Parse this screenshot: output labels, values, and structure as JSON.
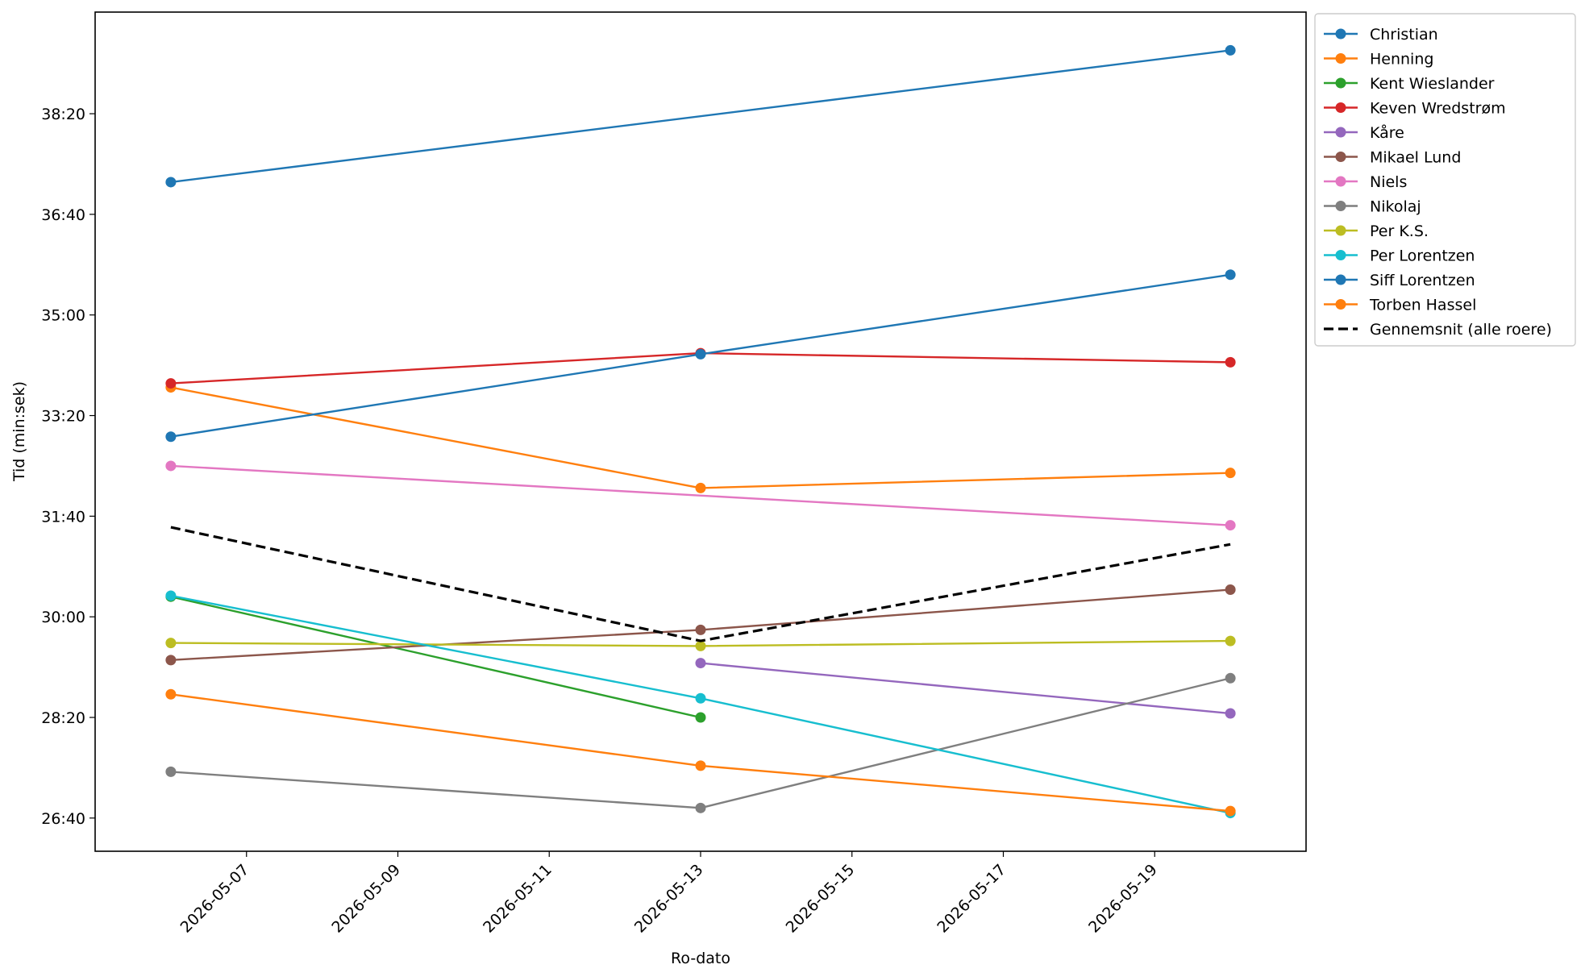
{
  "chart_data": {
    "type": "line",
    "title": "",
    "xlabel": "Ro-dato",
    "ylabel": "Tid (min:sek)",
    "x_type": "date",
    "xlim": [
      "2026-05-05",
      "2026-05-21"
    ],
    "x_ticks": [
      "2026-05-07",
      "2026-05-09",
      "2026-05-11",
      "2026-05-13",
      "2026-05-15",
      "2026-05-17",
      "2026-05-19"
    ],
    "y_unit": "min:sek",
    "ylim": [
      "26:07",
      "40:01"
    ],
    "y_ticks": [
      "26:40",
      "28:20",
      "30:00",
      "31:40",
      "33:20",
      "35:00",
      "36:40",
      "38:20"
    ],
    "grid": false,
    "legend_position": "outside-right",
    "series": [
      {
        "name": "Christian",
        "color": "#1f77b4",
        "style": "solid-marker",
        "points": [
          {
            "x": "2026-05-06",
            "y": "37:12"
          },
          {
            "x": "2026-05-20",
            "y": "39:23"
          }
        ]
      },
      {
        "name": "Henning",
        "color": "#ff7f0e",
        "style": "solid-marker",
        "points": [
          {
            "x": "2026-05-06",
            "y": "33:48"
          },
          {
            "x": "2026-05-13",
            "y": "32:08"
          },
          {
            "x": "2026-05-20",
            "y": "32:23"
          }
        ]
      },
      {
        "name": "Kent Wieslander",
        "color": "#2ca02c",
        "style": "solid-marker",
        "points": [
          {
            "x": "2026-05-06",
            "y": "30:20"
          },
          {
            "x": "2026-05-13",
            "y": "28:20"
          }
        ]
      },
      {
        "name": "Keven Wredstrøm",
        "color": "#d62728",
        "style": "solid-marker",
        "points": [
          {
            "x": "2026-05-06",
            "y": "33:52"
          },
          {
            "x": "2026-05-13",
            "y": "34:22"
          },
          {
            "x": "2026-05-20",
            "y": "34:13"
          }
        ]
      },
      {
        "name": "Kåre",
        "color": "#9467bd",
        "style": "solid-marker",
        "points": [
          {
            "x": "2026-05-13",
            "y": "29:14"
          },
          {
            "x": "2026-05-20",
            "y": "28:24"
          }
        ]
      },
      {
        "name": "Mikael Lund",
        "color": "#8c564b",
        "style": "solid-marker",
        "points": [
          {
            "x": "2026-05-06",
            "y": "29:17"
          },
          {
            "x": "2026-05-13",
            "y": "29:47"
          },
          {
            "x": "2026-05-20",
            "y": "30:27"
          }
        ]
      },
      {
        "name": "Niels",
        "color": "#e377c2",
        "style": "solid-marker",
        "points": [
          {
            "x": "2026-05-06",
            "y": "32:30"
          },
          {
            "x": "2026-05-20",
            "y": "31:31"
          }
        ]
      },
      {
        "name": "Nikolaj",
        "color": "#7f7f7f",
        "style": "solid-marker",
        "points": [
          {
            "x": "2026-05-06",
            "y": "27:26"
          },
          {
            "x": "2026-05-13",
            "y": "26:50"
          },
          {
            "x": "2026-05-20",
            "y": "28:59"
          }
        ]
      },
      {
        "name": "Per K.S.",
        "color": "#bcbd22",
        "style": "solid-marker",
        "points": [
          {
            "x": "2026-05-06",
            "y": "29:34"
          },
          {
            "x": "2026-05-13",
            "y": "29:31"
          },
          {
            "x": "2026-05-20",
            "y": "29:36"
          }
        ]
      },
      {
        "name": "Per Lorentzen",
        "color": "#17becf",
        "style": "solid-marker",
        "points": [
          {
            "x": "2026-05-06",
            "y": "30:21"
          },
          {
            "x": "2026-05-13",
            "y": "28:39"
          },
          {
            "x": "2026-05-20",
            "y": "26:45"
          }
        ]
      },
      {
        "name": "Siff Lorentzen",
        "color": "#1f77b4",
        "style": "solid-marker",
        "points": [
          {
            "x": "2026-05-06",
            "y": "32:59"
          },
          {
            "x": "2026-05-13",
            "y": "34:21"
          },
          {
            "x": "2026-05-20",
            "y": "35:40"
          }
        ]
      },
      {
        "name": "Torben Hassel",
        "color": "#ff7f0e",
        "style": "solid-marker",
        "points": [
          {
            "x": "2026-05-06",
            "y": "28:43"
          },
          {
            "x": "2026-05-13",
            "y": "27:32"
          },
          {
            "x": "2026-05-20",
            "y": "26:47"
          }
        ]
      },
      {
        "name": "Gennemsnit (alle roere)",
        "color": "#000000",
        "style": "dashed",
        "points": [
          {
            "x": "2026-05-06",
            "y": "31:29"
          },
          {
            "x": "2026-05-13",
            "y": "29:36"
          },
          {
            "x": "2026-05-20",
            "y": "31:12"
          }
        ]
      }
    ]
  }
}
